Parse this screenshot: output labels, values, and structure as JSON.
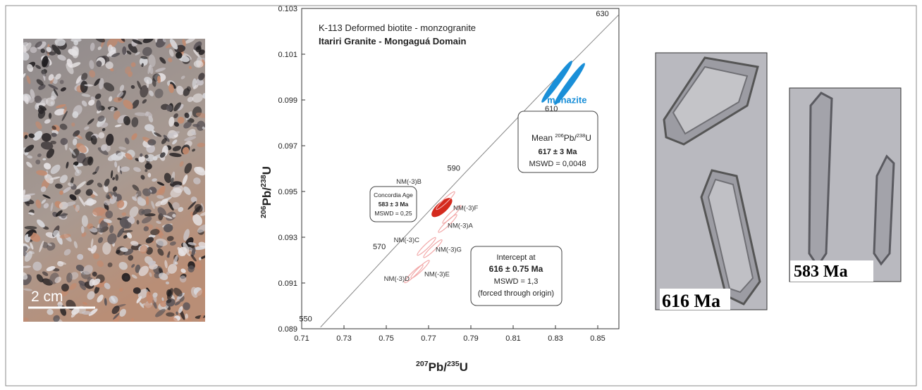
{
  "panels": {
    "rock_scale": "2 cm",
    "crystal_1": "616 Ma",
    "crystal_2": "583 Ma"
  },
  "chart_data": {
    "type": "concordia",
    "title": "K-113 Deformed biotite - monzogranite",
    "subtitle": "Itariri Granite - Mongaguá Domain",
    "x_label": [
      "207",
      "Pb/",
      "235",
      "U"
    ],
    "y_label": [
      "206",
      "Pb/",
      "238",
      "U"
    ],
    "xlim": [
      0.71,
      0.86
    ],
    "xticks": [
      0.71,
      0.73,
      0.75,
      0.77,
      0.79,
      0.81,
      0.83,
      0.85
    ],
    "ylim": [
      0.089,
      0.103
    ],
    "yticks": [
      0.089,
      0.091,
      0.093,
      0.095,
      0.097,
      0.099,
      0.101,
      0.103
    ],
    "concordia": {
      "ages": [
        550,
        570,
        590,
        610,
        630
      ],
      "x": [
        0.7189,
        0.7531,
        0.7879,
        0.8234,
        0.8599
      ],
      "y": [
        0.08907,
        0.09247,
        0.09588,
        0.09931,
        0.10272
      ]
    },
    "series": [
      {
        "name": "monazite",
        "color": "#1a8fd8",
        "x": [
          0.8307,
          0.8367
        ],
        "values": [
          0.0998,
          0.0997
        ]
      },
      {
        "color": "#d42a1e",
        "x": [
          0.7763
        ],
        "values": [
          0.0943
        ]
      },
      {
        "color": "#f2a8a8",
        "labels": [
          "NM(-3)B",
          "NM(-3)F",
          "NM(-3)A",
          "NM(-3)C",
          "NM(-3)G",
          "NM(-3)D",
          "NM(-3)E"
        ],
        "x": [
          0.778,
          0.781,
          0.779,
          0.769,
          0.772,
          0.763,
          0.766
        ],
        "values": [
          0.0946,
          0.094,
          0.0936,
          0.0926,
          0.0925,
          0.0914,
          0.0916
        ]
      }
    ],
    "annotations": {
      "concordia_age": [
        "Concordia Age",
        "583 ± 3 Ma",
        "MSWD = 0,25"
      ],
      "mean_title": [
        "Mean ",
        "206",
        "Pb/",
        "238",
        "U"
      ],
      "mean": [
        "617 ± 3  Ma",
        "MSWD = 0,0048"
      ],
      "intercept": [
        "Intercept at",
        "616 ± 0.75  Ma",
        "MSWD = 1,3",
        "(forced through origin)"
      ]
    }
  }
}
